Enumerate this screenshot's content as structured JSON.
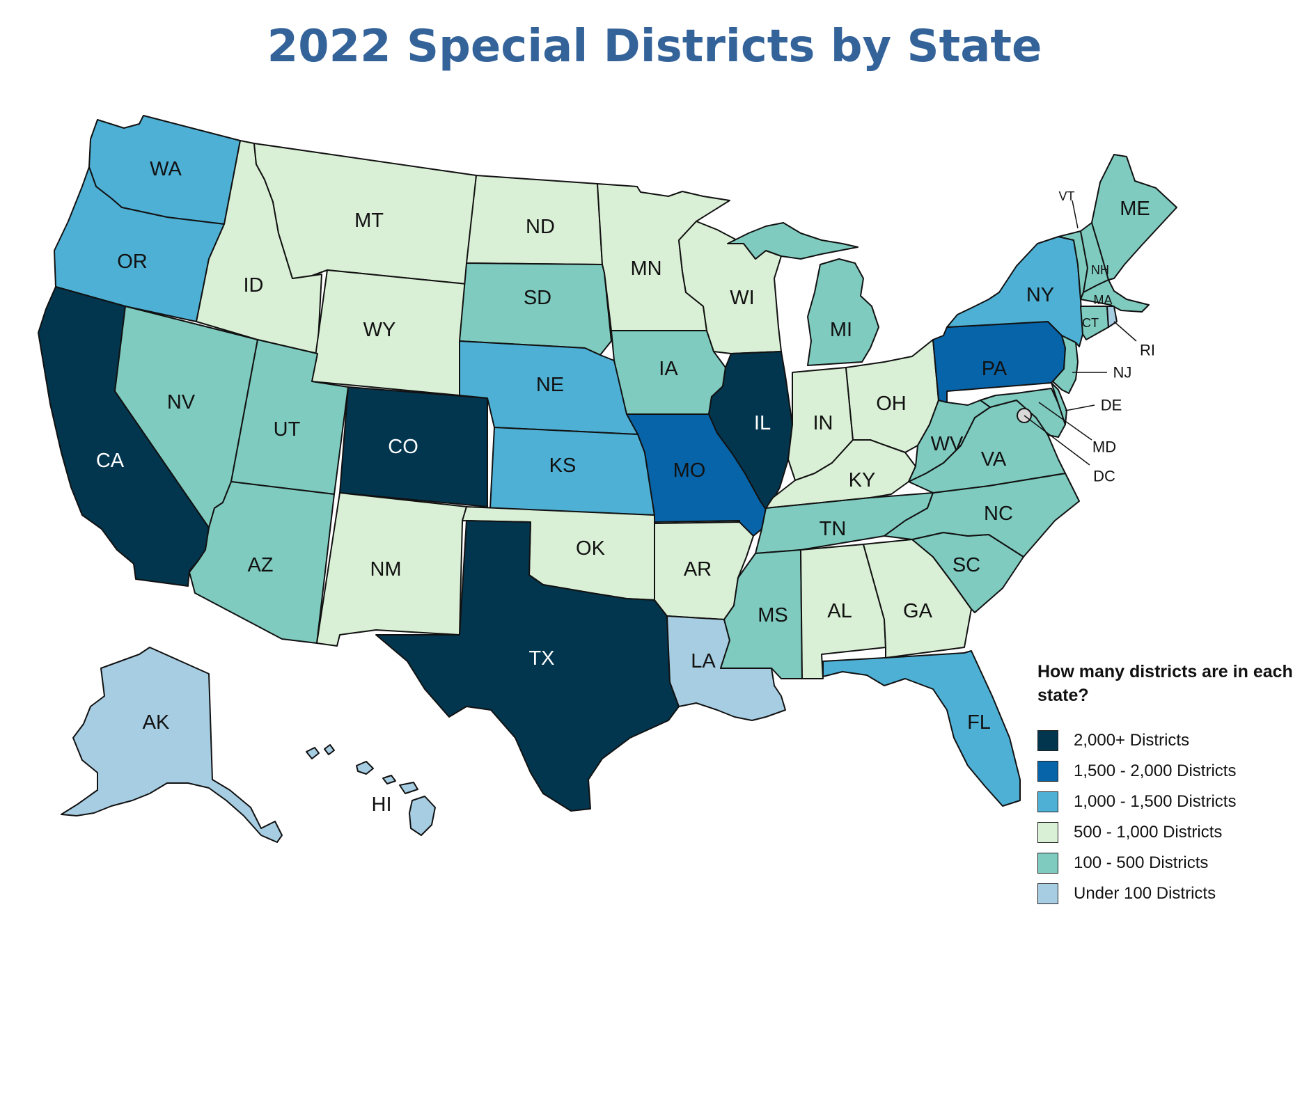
{
  "title": "2022 Special Districts by State",
  "colors": {
    "c2000": "#02364f",
    "c1500": "#0864a8",
    "c1000": "#4eb0d5",
    "c500": "#daf0d6",
    "c100": "#7fcbbf",
    "c0": "#a7cde3"
  },
  "legend": {
    "title": "How many districts are in each state?",
    "items": [
      {
        "label": "2,000+ Districts",
        "color": "#02364f"
      },
      {
        "label": "1,500 - 2,000 Districts",
        "color": "#0864a8"
      },
      {
        "label": "1,000 - 1,500 Districts",
        "color": "#4eb0d5"
      },
      {
        "label": "500 - 1,000 Districts",
        "color": "#daf0d6"
      },
      {
        "label": "100 - 500 Districts",
        "color": "#7fcbbf"
      },
      {
        "label": "Under 100 Districts",
        "color": "#a7cde3"
      }
    ]
  },
  "states": {
    "WA": {
      "label": "WA",
      "category": "1,000 - 1,500 Districts"
    },
    "OR": {
      "label": "OR",
      "category": "1,000 - 1,500 Districts"
    },
    "CA": {
      "label": "CA",
      "category": "2,000+ Districts"
    },
    "NV": {
      "label": "NV",
      "category": "100 - 500 Districts"
    },
    "ID": {
      "label": "ID",
      "category": "500 - 1,000 Districts"
    },
    "MT": {
      "label": "MT",
      "category": "500 - 1,000 Districts"
    },
    "WY": {
      "label": "WY",
      "category": "500 - 1,000 Districts"
    },
    "UT": {
      "label": "UT",
      "category": "100 - 500 Districts"
    },
    "AZ": {
      "label": "AZ",
      "category": "100 - 500 Districts"
    },
    "CO": {
      "label": "CO",
      "category": "2,000+ Districts"
    },
    "NM": {
      "label": "NM",
      "category": "500 - 1,000 Districts"
    },
    "ND": {
      "label": "ND",
      "category": "500 - 1,000 Districts"
    },
    "SD": {
      "label": "SD",
      "category": "100 - 500 Districts"
    },
    "NE": {
      "label": "NE",
      "category": "1,000 - 1,500 Districts"
    },
    "KS": {
      "label": "KS",
      "category": "1,000 - 1,500 Districts"
    },
    "OK": {
      "label": "OK",
      "category": "500 - 1,000 Districts"
    },
    "TX": {
      "label": "TX",
      "category": "2,000+ Districts"
    },
    "MN": {
      "label": "MN",
      "category": "500 - 1,000 Districts"
    },
    "IA": {
      "label": "IA",
      "category": "100 - 500 Districts"
    },
    "MO": {
      "label": "MO",
      "category": "1,500 - 2,000 Districts"
    },
    "AR": {
      "label": "AR",
      "category": "500 - 1,000 Districts"
    },
    "LA": {
      "label": "LA",
      "category": "Under 100 Districts"
    },
    "WI": {
      "label": "WI",
      "category": "500 - 1,000 Districts"
    },
    "IL": {
      "label": "IL",
      "category": "2,000+ Districts"
    },
    "MI": {
      "label": "MI",
      "category": "100 - 500 Districts"
    },
    "IN": {
      "label": "IN",
      "category": "500 - 1,000 Districts"
    },
    "OH": {
      "label": "OH",
      "category": "500 - 1,000 Districts"
    },
    "KY": {
      "label": "KY",
      "category": "500 - 1,000 Districts"
    },
    "TN": {
      "label": "TN",
      "category": "100 - 500 Districts"
    },
    "MS": {
      "label": "MS",
      "category": "100 - 500 Districts"
    },
    "AL": {
      "label": "AL",
      "category": "500 - 1,000 Districts"
    },
    "GA": {
      "label": "GA",
      "category": "500 - 1,000 Districts"
    },
    "FL": {
      "label": "FL",
      "category": "1,000 - 1,500 Districts"
    },
    "SC": {
      "label": "SC",
      "category": "100 - 500 Districts"
    },
    "NC": {
      "label": "NC",
      "category": "100 - 500 Districts"
    },
    "VA": {
      "label": "VA",
      "category": "100 - 500 Districts"
    },
    "WV": {
      "label": "WV",
      "category": "100 - 500 Districts"
    },
    "PA": {
      "label": "PA",
      "category": "1,500 - 2,000 Districts"
    },
    "NY": {
      "label": "NY",
      "category": "1,000 - 1,500 Districts"
    },
    "VT": {
      "label": "VT",
      "category": "100 - 500 Districts"
    },
    "NH": {
      "label": "NH",
      "category": "100 - 500 Districts"
    },
    "ME": {
      "label": "ME",
      "category": "100 - 500 Districts"
    },
    "MA": {
      "label": "MA",
      "category": "100 - 500 Districts"
    },
    "CT": {
      "label": "CT",
      "category": "100 - 500 Districts"
    },
    "RI": {
      "label": "RI",
      "category": "Under 100 Districts"
    },
    "NJ": {
      "label": "NJ",
      "category": "100 - 500 Districts"
    },
    "DE": {
      "label": "DE",
      "category": "100 - 500 Districts"
    },
    "MD": {
      "label": "MD",
      "category": "100 - 500 Districts"
    },
    "DC": {
      "label": "DC",
      "category": "Under 100 Districts"
    },
    "AK": {
      "label": "AK",
      "category": "Under 100 Districts"
    },
    "HI": {
      "label": "HI",
      "category": "Under 100 Districts"
    }
  }
}
